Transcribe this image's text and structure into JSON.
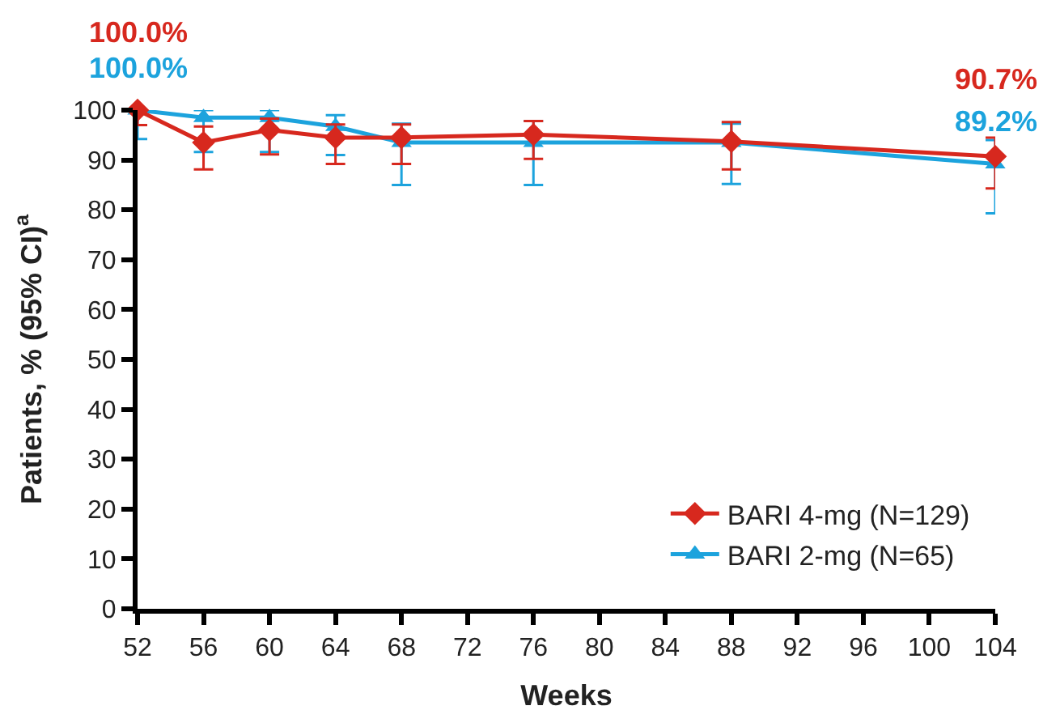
{
  "chart_data": {
    "type": "line",
    "xlabel": "Weeks",
    "ylabel": "Patients, % (95% CI)$^{a}$",
    "x": [
      52,
      56,
      60,
      64,
      68,
      76,
      88,
      104
    ],
    "series": [
      {
        "name": "BARI 4-mg (N=129)",
        "color": "#d7281e",
        "marker": "diamond",
        "values": [
          100,
          93.5,
          96,
          94.5,
          94.5,
          95.1,
          93.7,
          90.7
        ],
        "value_labels": [
          "100.0%",
          null,
          null,
          null,
          null,
          null,
          null,
          "90.7%"
        ],
        "errors": [
          [
            97,
            100
          ],
          [
            88.1,
            96.7
          ],
          [
            91.1,
            98.3
          ],
          [
            89.2,
            97.1
          ],
          [
            89.2,
            97.1
          ],
          [
            90.2,
            97.8
          ],
          [
            88.1,
            97.6
          ],
          [
            84.3,
            94.5
          ]
        ]
      },
      {
        "name": "BARI 2-mg (N=65)",
        "color": "#1ca3dd",
        "marker": "triangle",
        "values": [
          100,
          98.5,
          98.5,
          96.7,
          93.5,
          93.5,
          93.5,
          89.2
        ],
        "value_labels": [
          "100.0%",
          null,
          null,
          null,
          null,
          null,
          null,
          "89.2%"
        ],
        "errors": [
          [
            94.2,
            100
          ],
          [
            91.6,
            100
          ],
          [
            91.6,
            100
          ],
          [
            91,
            99
          ],
          [
            85,
            97.3
          ],
          [
            85,
            97.8
          ],
          [
            85.2,
            97.3
          ],
          [
            79.3,
            94
          ]
        ]
      }
    ],
    "xlim": [
      52,
      104
    ],
    "xticks": [
      52,
      56,
      60,
      64,
      68,
      72,
      76,
      80,
      84,
      88,
      92,
      96,
      100,
      104
    ],
    "ylim": [
      0,
      100
    ],
    "yticks": [
      0,
      10,
      20,
      30,
      40,
      50,
      60,
      70,
      80,
      90,
      100
    ],
    "legend": "bottom right",
    "line_style": "solid"
  }
}
